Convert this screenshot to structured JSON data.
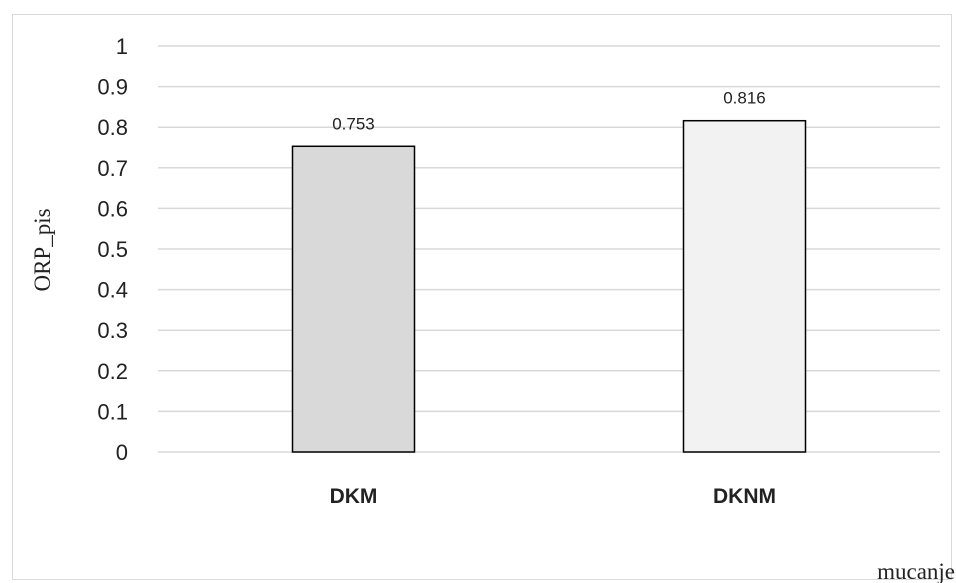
{
  "chart_data": {
    "type": "bar",
    "categories": [
      "DKM",
      "DKNM"
    ],
    "values": [
      0.753,
      0.816
    ],
    "data_labels": [
      "0.753",
      "0.816"
    ],
    "title": "",
    "xlabel": "mucanje",
    "ylabel": "ORP_pis",
    "ylim": [
      0,
      1
    ],
    "y_ticks": [
      "0",
      "0.1",
      "0.2",
      "0.3",
      "0.4",
      "0.5",
      "0.6",
      "0.7",
      "0.8",
      "0.9",
      "1"
    ],
    "grid": true,
    "legend": "none",
    "colors": {
      "bars": [
        "#d9d9d9",
        "#f2f2f2"
      ],
      "bar_outline": "#000000",
      "grid": "#d9d9d9"
    }
  }
}
